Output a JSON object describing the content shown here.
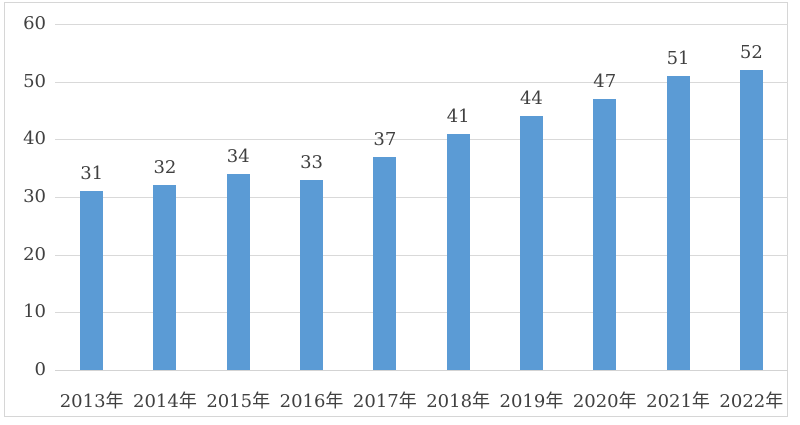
{
  "chart_data": {
    "type": "bar",
    "categories": [
      "2013年",
      "2014年",
      "2015年",
      "2016年",
      "2017年",
      "2018年",
      "2019年",
      "2020年",
      "2021年",
      "2022年"
    ],
    "values": [
      31,
      32,
      34,
      33,
      37,
      41,
      44,
      47,
      51,
      52
    ],
    "title": "",
    "xlabel": "",
    "ylabel": "",
    "ylim": [
      0,
      60
    ],
    "yticks": [
      0,
      10,
      20,
      30,
      40,
      50,
      60
    ],
    "grid": true,
    "legend": "none",
    "data_labels": "above-bars",
    "colors": {
      "bar": "#5b9bd5",
      "gridline": "#d9d9d9",
      "axis_line": "#d3d3d3",
      "text": "#404040",
      "border": "#d6d6d6",
      "background": "#ffffff"
    }
  }
}
